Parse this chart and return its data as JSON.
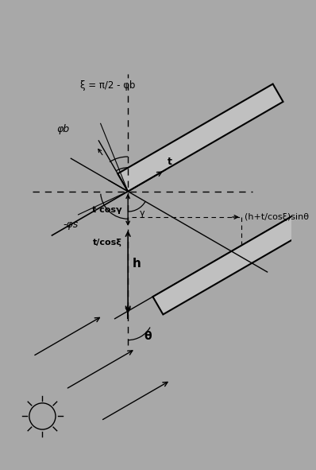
{
  "bg_color": "#a8a8a8",
  "line_color": "#000000",
  "fig_width": 3.98,
  "fig_height": 5.91,
  "dpi": 100,
  "labels": {
    "xi_eq": "ξ = π/2 - φb",
    "phi_b": "φb",
    "minus_phi_s": "-φs",
    "t_cosgamma": "t cosγ",
    "t_cosxi": "t/cosξ",
    "h": "h",
    "theta": "θ",
    "t": "t",
    "gamma": "γ",
    "h_formula": "(h+t/cosξ)sinθ"
  }
}
